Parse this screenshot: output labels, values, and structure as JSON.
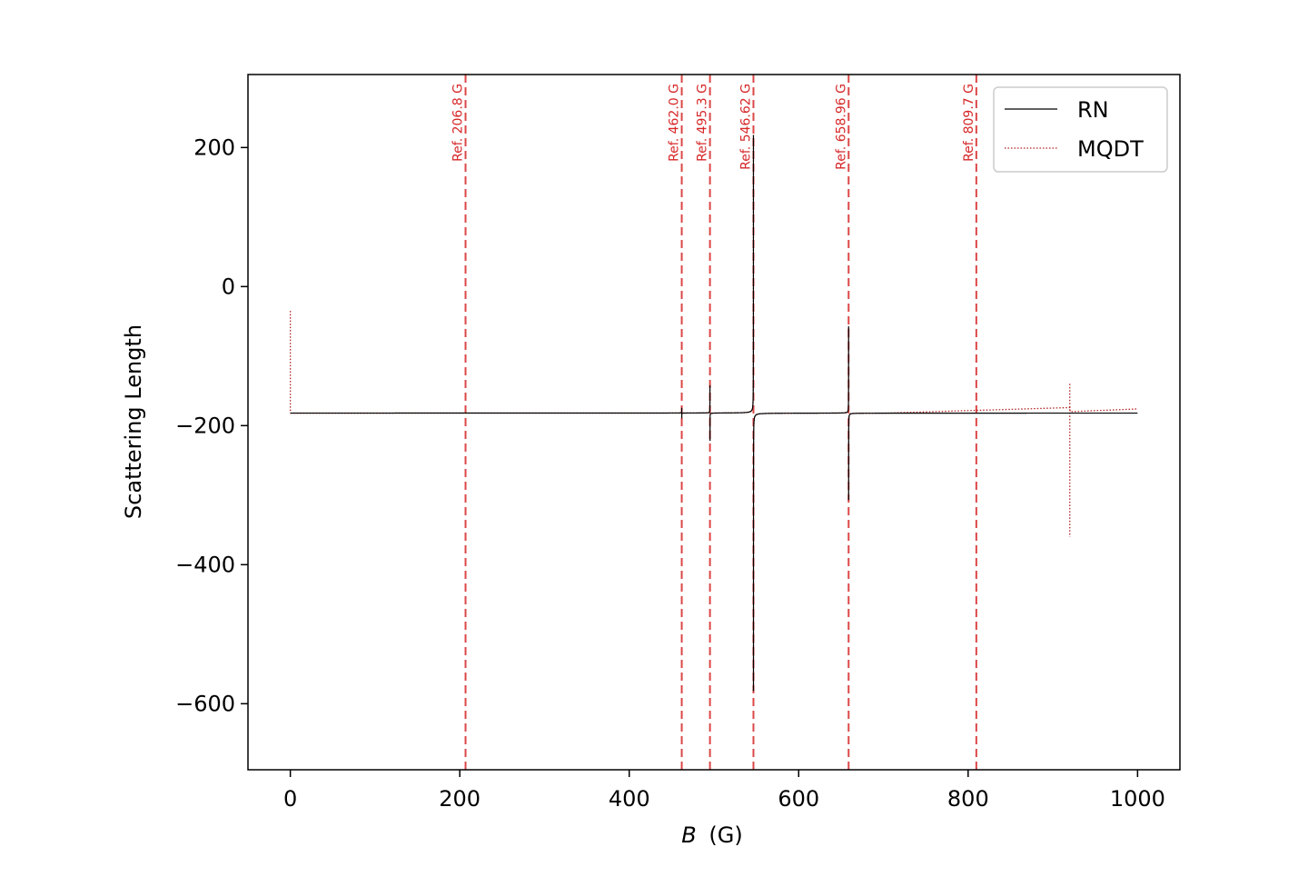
{
  "chart_data": {
    "type": "line",
    "title": "",
    "xlabel": "B",
    "xlabel_unit": "(G)",
    "ylabel": "Scattering Length",
    "xlim": [
      -50,
      1050
    ],
    "ylim": [
      -695,
      305
    ],
    "x_ticks": [
      0,
      200,
      400,
      600,
      800,
      1000
    ],
    "x_tick_labels": [
      "0",
      "200",
      "400",
      "600",
      "800",
      "1000"
    ],
    "y_ticks": [
      200,
      0,
      -200,
      -400,
      -600
    ],
    "y_tick_labels": [
      "200",
      "0",
      "−200",
      "−400",
      "−600"
    ],
    "grid": false,
    "legend_position": "top-right",
    "background_level": -182,
    "resonances": [
      {
        "position": 462.0,
        "width": 0.15,
        "low_clip": -200,
        "high_clip": -125
      },
      {
        "position": 495.3,
        "width": 0.8,
        "low_clip": -390,
        "high_clip": 145
      },
      {
        "position": 546.62,
        "width": 8.0,
        "low_clip": -695,
        "high_clip": 305
      },
      {
        "position": 658.96,
        "width": 2.5,
        "low_clip": -695,
        "high_clip": 305
      }
    ],
    "series": [
      {
        "name": "RN",
        "color": "#000000",
        "style": "solid",
        "x_range": [
          0,
          1000
        ]
      },
      {
        "name": "MQDT",
        "color": "#b22222",
        "style": "dotted",
        "x_range": [
          0,
          1000
        ],
        "start_value": -35,
        "feature_at": 920,
        "feature_high": -140,
        "feature_low": -360,
        "end_value": -176
      }
    ],
    "reference_lines": [
      {
        "x": 206.8,
        "label": "Ref. 206.8 G"
      },
      {
        "x": 462.0,
        "label": "Ref. 462.0 G"
      },
      {
        "x": 495.3,
        "label": "Ref. 495.3 G"
      },
      {
        "x": 546.62,
        "label": "Ref. 546.62 G"
      },
      {
        "x": 658.96,
        "label": "Ref. 658.96 G"
      },
      {
        "x": 809.7,
        "label": "Ref. 809.7 G"
      }
    ],
    "reference_color": "#d62728"
  }
}
